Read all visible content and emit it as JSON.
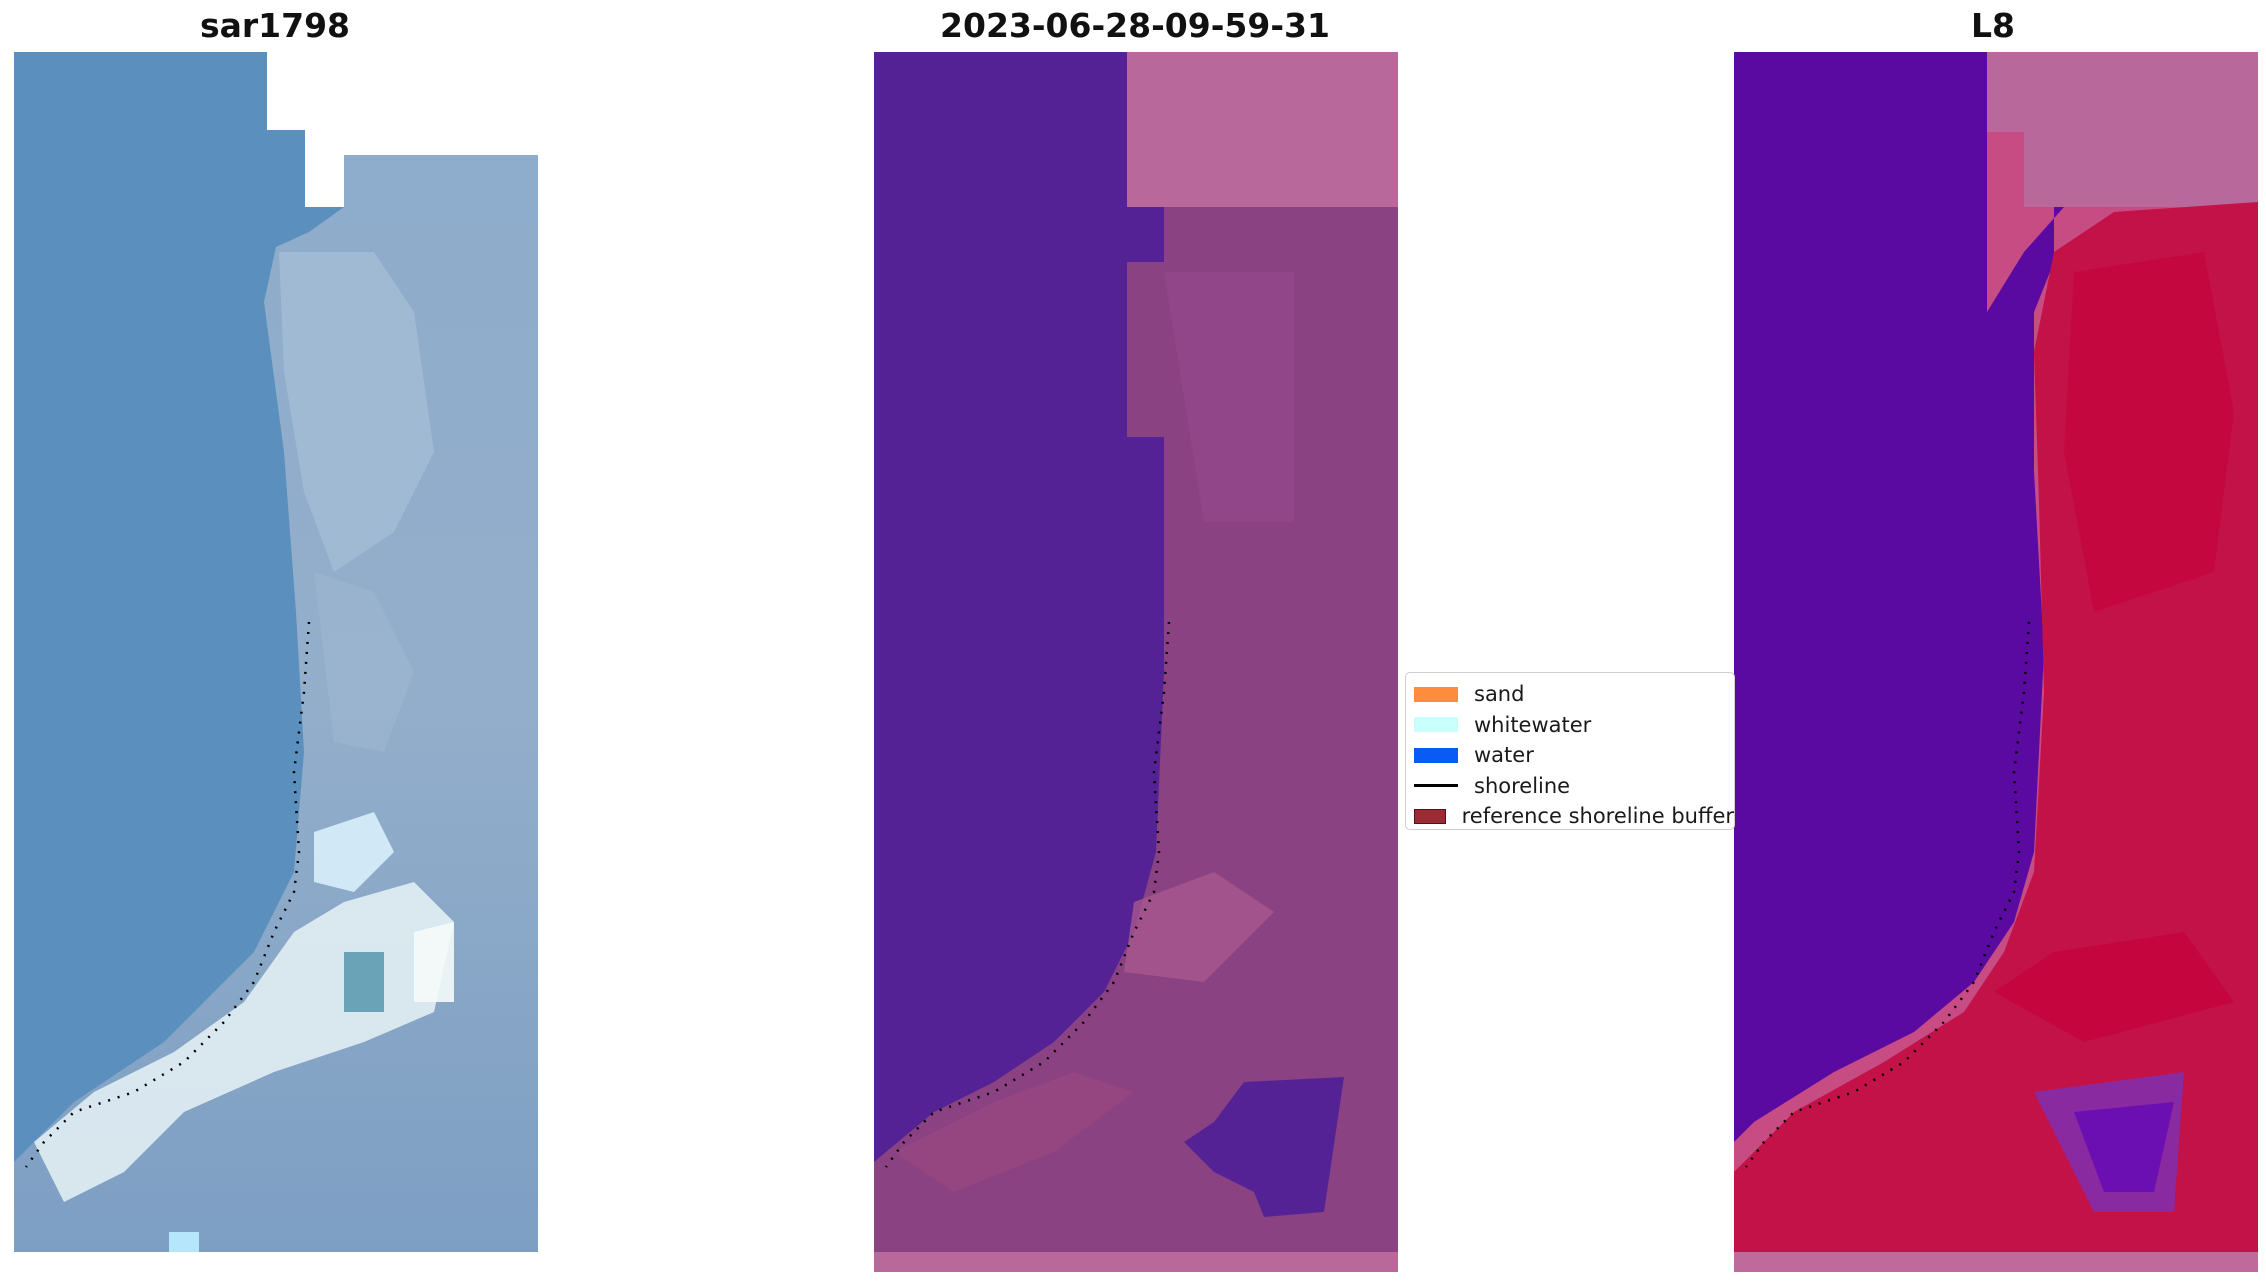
{
  "panels": [
    {
      "title": "sar1798",
      "image": "rgb-satellite-image"
    },
    {
      "title": "2023-06-28-09-59-31",
      "image": "classified-image-overlay"
    },
    {
      "title": "L8",
      "image": "index-image"
    }
  ],
  "legend": {
    "items": [
      {
        "label": "sand",
        "color": "#ff8c3c",
        "kind": "patch"
      },
      {
        "label": "whitewater",
        "color": "#c9fffd",
        "kind": "patch"
      },
      {
        "label": "water",
        "color": "#0a5af5",
        "kind": "patch"
      },
      {
        "label": "shoreline",
        "color": "#000000",
        "kind": "line"
      },
      {
        "label": "reference shoreline buffer",
        "color": "#9b2b35",
        "kind": "patch"
      }
    ]
  },
  "colors": {
    "sea_blue": "#5b8fbd",
    "land_gray": "#8aa6c4",
    "water_purple": "#552296",
    "land_mauve": "#8a4283",
    "frame_pink": "#b9689b",
    "index_purple": "#5a0aa0",
    "index_red": "#c21248"
  }
}
